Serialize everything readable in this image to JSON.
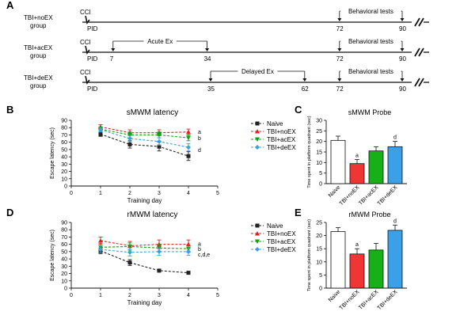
{
  "panels": {
    "A": "A",
    "B": "B",
    "C": "C",
    "D": "D",
    "E": "E"
  },
  "timeline": {
    "ccl": "CCI",
    "pid": "PID",
    "rows": [
      {
        "group_line1": "TBI+noEX",
        "group_line2": "group",
        "spans": [
          {
            "label": "Behavioral tests",
            "start": 72,
            "end": 90
          }
        ],
        "ticks": [
          "72",
          "90"
        ]
      },
      {
        "group_line1": "TBI+acEX",
        "group_line2": "group",
        "spans": [
          {
            "label": "Acute Ex",
            "start": 7,
            "end": 34
          },
          {
            "label": "Behavioral tests",
            "start": 72,
            "end": 90
          }
        ],
        "ticks": [
          "7",
          "34",
          "72",
          "90"
        ]
      },
      {
        "group_line1": "TBI+deEX",
        "group_line2": "group",
        "spans": [
          {
            "label": "Delayed Ex",
            "start": 35,
            "end": 62
          },
          {
            "label": "Behavioral tests",
            "start": 72,
            "end": 90
          }
        ],
        "ticks": [
          "35",
          "62",
          "72",
          "90"
        ]
      }
    ]
  },
  "colors": {
    "naive": "#222222",
    "noEX": "#e02020",
    "acEX": "#10a010",
    "deEX": "#3aa0e0"
  },
  "chart_data": [
    {
      "type": "line",
      "title": "sMWM latency",
      "xlabel": "Training day",
      "ylabel": "Escape latency (sec)",
      "xlim": [
        0,
        5
      ],
      "ylim": [
        0,
        90
      ],
      "xticks": [
        "0",
        "1",
        "2",
        "3",
        "4",
        "5"
      ],
      "yticks": [
        "0",
        "10",
        "20",
        "30",
        "40",
        "50",
        "60",
        "70",
        "80",
        "90"
      ],
      "x": [
        1,
        2,
        3,
        4
      ],
      "series": [
        {
          "name": "Naive",
          "values": [
            71,
            57,
            54,
            41
          ],
          "err": [
            3,
            5,
            6,
            6
          ]
        },
        {
          "name": "TBI+noEX",
          "values": [
            81,
            73,
            73,
            74
          ],
          "err": [
            3,
            4,
            4,
            4
          ]
        },
        {
          "name": "TBI+acEX",
          "values": [
            78,
            70,
            70,
            66
          ],
          "err": [
            3,
            4,
            4,
            4
          ]
        },
        {
          "name": "TBI+deEX",
          "values": [
            77,
            65,
            61,
            53
          ],
          "err": [
            3,
            4,
            5,
            5
          ]
        }
      ],
      "annotations": [
        "a",
        "b",
        "d"
      ],
      "legend": "right"
    },
    {
      "type": "bar",
      "title": "sMWM Probe",
      "ylabel": "Time spent in platform quadrant (sec)",
      "categories": [
        "Naive",
        "TBI+noEX",
        "TBI+acEX",
        "TBI+deEX"
      ],
      "values": [
        20.5,
        9.5,
        15.5,
        17.5
      ],
      "err": [
        2,
        2,
        2,
        2.5
      ],
      "sig": [
        "",
        "a",
        "",
        "d"
      ],
      "ylim": [
        0,
        30
      ],
      "yticks": [
        "0",
        "5",
        "10",
        "15",
        "20",
        "25",
        "30"
      ]
    },
    {
      "type": "line",
      "title": "rMWM latency",
      "xlabel": "Training day",
      "ylabel": "Escape latency (sec)",
      "xlim": [
        0,
        5
      ],
      "ylim": [
        0,
        90
      ],
      "xticks": [
        "0",
        "1",
        "2",
        "3",
        "4",
        "5"
      ],
      "yticks": [
        "0",
        "10",
        "20",
        "30",
        "40",
        "50",
        "60",
        "70",
        "80",
        "90"
      ],
      "x": [
        1,
        2,
        3,
        4
      ],
      "series": [
        {
          "name": "Naive",
          "values": [
            51,
            35,
            24,
            21
          ],
          "err": [
            4,
            4,
            2,
            2
          ]
        },
        {
          "name": "TBI+noEX",
          "values": [
            65,
            58,
            60,
            60
          ],
          "err": [
            5,
            6,
            6,
            6
          ]
        },
        {
          "name": "TBI+acEX",
          "values": [
            56,
            57,
            55,
            54
          ],
          "err": [
            5,
            5,
            5,
            5
          ]
        },
        {
          "name": "TBI+deEX",
          "values": [
            53,
            49,
            50,
            50
          ],
          "err": [
            5,
            5,
            5,
            5
          ]
        }
      ],
      "annotations": [
        "a",
        "b",
        "c,d,e"
      ],
      "legend": "right"
    },
    {
      "type": "bar",
      "title": "rMWM Probe",
      "ylabel": "Time spent in platform quadrant (sec)",
      "categories": [
        "Naive",
        "TBI+noEX",
        "TBI+acEX",
        "TBI+deEX"
      ],
      "values": [
        21.5,
        13,
        14.5,
        22
      ],
      "err": [
        1.5,
        2,
        2.5,
        2
      ],
      "sig": [
        "",
        "a",
        "",
        "d"
      ],
      "ylim": [
        0,
        25
      ],
      "yticks": [
        "0",
        "5",
        "10",
        "15",
        "20",
        "25"
      ]
    }
  ]
}
